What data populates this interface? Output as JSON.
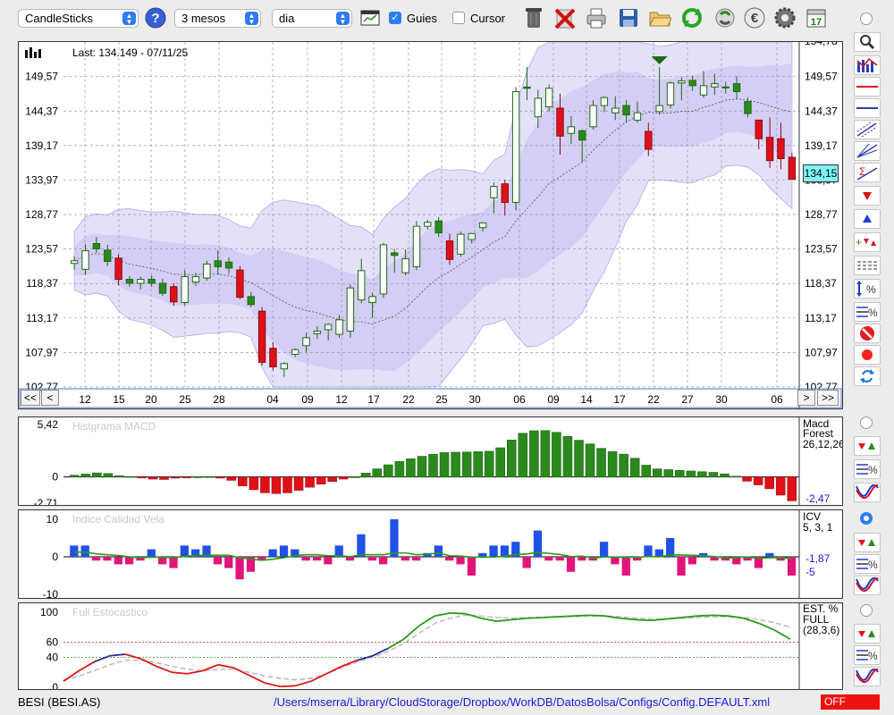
{
  "toolbar": {
    "chart_type": "CandleSticks",
    "period": "3 mesos",
    "interval": "dia",
    "guides_label": "Guies",
    "guides_checked": true,
    "cursor_label": "Cursor",
    "cursor_checked": false,
    "icons": [
      "help-icon",
      "calendar-chart-icon",
      "trash-icon",
      "delete-icon",
      "printer-icon",
      "save-icon",
      "open-folder-icon",
      "refresh-icon",
      "recycle-icon",
      "euro-icon",
      "gear-icon",
      "calendar-icon"
    ],
    "calendar_day": "17"
  },
  "main_chart": {
    "last_label": "Last: 134.149 - 07/11/25",
    "last_price_badge": "134,15",
    "y_ticks": [
      "149,57",
      "144,37",
      "139,17",
      "133,97",
      "128,77",
      "123,57",
      "118,37",
      "113,17",
      "107,97",
      "102,77"
    ],
    "y_top_partial": "154,78",
    "x_ticks": [
      "12",
      "15",
      "20",
      "25",
      "28",
      "04",
      "09",
      "12",
      "17",
      "22",
      "25",
      "30",
      "06",
      "09",
      "14",
      "17",
      "22",
      "27",
      "30",
      "06"
    ],
    "nav": {
      "first": "<<",
      "prev": "<",
      "next": ">",
      "last": ">>"
    }
  },
  "macd": {
    "title": "Histgrama MACD",
    "legend": [
      "Macd",
      "Forest",
      "26,12,26"
    ],
    "y_ticks": [
      "5,42",
      "0",
      "-2,71"
    ],
    "value": "-2,47"
  },
  "icv": {
    "title": "Indice Calidad Vela",
    "legend": [
      "ICV",
      "5, 3, 1"
    ],
    "y_ticks": [
      "10",
      "0",
      "-10"
    ],
    "values": [
      "-1,87",
      "-5"
    ]
  },
  "stoch": {
    "title": "Full Estocastico",
    "legend": [
      "EST. %",
      "FULL",
      "(28,3,6)"
    ],
    "y_ticks": [
      "100",
      "60",
      "40",
      "0"
    ]
  },
  "status": {
    "symbol": "BESI (BESI.AS)",
    "config_path": "/Users/mserra/Library/CloudStorage/Dropbox/WorkDB/DatosBolsa/Configs/Config.DEFAULT.xml",
    "off_label": "OFF"
  },
  "colors": {
    "up": "#2a8a1c",
    "down": "#e0101a",
    "band": "#d9d4f7",
    "accent": "#2d7cf5",
    "badge": "#7ff3f7"
  },
  "chart_data": [
    {
      "type": "candlestick",
      "title": "",
      "ylim": [
        102.77,
        154.78
      ],
      "x_tick_labels": [
        "12",
        "15",
        "20",
        "25",
        "28",
        "04",
        "09",
        "12",
        "17",
        "22",
        "25",
        "30",
        "06",
        "09",
        "14",
        "17",
        "22",
        "27",
        "30",
        "06"
      ],
      "last": 134.149,
      "ohlc": [
        [
          121.4,
          122.5,
          120.4,
          121.8
        ],
        [
          120.5,
          124.3,
          119.7,
          123.3
        ],
        [
          124.4,
          125.4,
          123.0,
          123.6
        ],
        [
          123.4,
          124.2,
          121.0,
          121.7
        ],
        [
          122.2,
          122.8,
          118.1,
          119.0
        ],
        [
          119.0,
          119.5,
          117.9,
          118.4
        ],
        [
          118.4,
          119.4,
          117.5,
          119.0
        ],
        [
          119.0,
          119.6,
          117.9,
          118.4
        ],
        [
          118.4,
          119.1,
          116.5,
          116.9
        ],
        [
          117.9,
          118.4,
          115.0,
          115.6
        ],
        [
          115.5,
          120.4,
          115.0,
          119.4
        ],
        [
          118.6,
          120.0,
          118.0,
          119.4
        ],
        [
          119.2,
          121.8,
          118.8,
          121.3
        ],
        [
          121.8,
          123.4,
          119.7,
          120.9
        ],
        [
          121.6,
          122.3,
          119.8,
          120.7
        ],
        [
          120.4,
          121.0,
          116.0,
          116.3
        ],
        [
          116.4,
          117.1,
          114.8,
          115.2
        ],
        [
          114.2,
          114.8,
          106.0,
          106.5
        ],
        [
          108.6,
          109.5,
          105.3,
          105.8
        ],
        [
          105.5,
          106.5,
          104.3,
          106.3
        ],
        [
          107.7,
          108.6,
          107.3,
          108.4
        ],
        [
          109.0,
          110.9,
          108.0,
          110.2
        ],
        [
          110.8,
          111.9,
          110.0,
          111.2
        ],
        [
          111.4,
          112.4,
          109.8,
          112.2
        ],
        [
          110.7,
          113.6,
          110.2,
          112.9
        ],
        [
          111.2,
          118.2,
          110.2,
          117.7
        ],
        [
          115.9,
          122.1,
          115.4,
          120.3
        ],
        [
          115.5,
          117.0,
          113.2,
          116.4
        ],
        [
          116.8,
          124.5,
          116.2,
          124.2
        ],
        [
          123.0,
          123.6,
          120.0,
          122.6
        ],
        [
          120.0,
          123.5,
          119.6,
          122.1
        ],
        [
          120.9,
          127.8,
          120.4,
          127.0
        ],
        [
          127.0,
          128.0,
          126.5,
          127.6
        ],
        [
          127.8,
          128.4,
          125.4,
          126.0
        ],
        [
          124.8,
          125.9,
          121.2,
          122.0
        ],
        [
          122.8,
          126.2,
          122.4,
          125.8
        ],
        [
          125.0,
          126.0,
          124.4,
          125.9
        ],
        [
          126.8,
          127.6,
          126.2,
          127.5
        ],
        [
          131.3,
          133.6,
          129.0,
          133.0
        ],
        [
          133.4,
          134.0,
          128.6,
          130.6
        ],
        [
          130.6,
          148.0,
          129.4,
          147.3
        ],
        [
          148.0,
          151.0,
          146.0,
          147.8
        ],
        [
          143.5,
          147.6,
          141.8,
          146.3
        ],
        [
          145.0,
          148.4,
          144.3,
          147.8
        ],
        [
          144.8,
          147.0,
          137.8,
          140.6
        ],
        [
          141.0,
          143.6,
          139.4,
          142.0
        ],
        [
          141.4,
          141.6,
          136.6,
          140.0
        ],
        [
          142.0,
          146.0,
          141.6,
          145.2
        ],
        [
          145.2,
          146.6,
          144.2,
          146.4
        ],
        [
          144.1,
          146.6,
          143.0,
          144.8
        ],
        [
          145.2,
          146.0,
          142.6,
          143.8
        ],
        [
          143.0,
          145.8,
          142.6,
          144.1
        ],
        [
          141.3,
          142.6,
          137.6,
          138.6
        ],
        [
          144.3,
          151.0,
          143.8,
          145.2
        ],
        [
          145.3,
          148.8,
          144.8,
          148.6
        ],
        [
          148.6,
          149.4,
          146.0,
          148.9
        ],
        [
          149.0,
          149.7,
          147.4,
          148.2
        ],
        [
          146.8,
          150.4,
          146.4,
          148.2
        ],
        [
          148.0,
          150.0,
          146.8,
          148.5
        ],
        [
          148.0,
          148.8,
          147.0,
          147.9
        ],
        [
          148.5,
          149.6,
          146.2,
          147.3
        ],
        [
          145.8,
          146.4,
          143.4,
          144.0
        ],
        [
          143.0,
          142.6,
          138.6,
          140.2
        ],
        [
          140.4,
          143.4,
          135.8,
          136.9
        ],
        [
          140.2,
          142.6,
          135.6,
          137.2
        ],
        [
          137.4,
          138.1,
          134.0,
          134.1
        ]
      ],
      "bands": {
        "upper_range": [
          128.5,
          153.6
        ],
        "lower_range": [
          104.4,
          120.0
        ]
      }
    },
    {
      "type": "bar",
      "title": "Histgrama MACD",
      "ylim": [
        -2.71,
        5.42
      ],
      "values": [
        0.18,
        0.3,
        0.42,
        0.36,
        0.12,
        0.05,
        -0.04,
        -0.22,
        -0.26,
        -0.12,
        -0.06,
        0.02,
        0.03,
        -0.12,
        -0.35,
        -0.92,
        -1.32,
        -1.64,
        -1.72,
        -1.64,
        -1.38,
        -1.06,
        -0.74,
        -0.48,
        -0.22,
        0.02,
        0.4,
        0.84,
        1.26,
        1.6,
        1.88,
        2.14,
        2.36,
        2.52,
        2.56,
        2.58,
        2.62,
        2.66,
        3.02,
        3.82,
        4.52,
        4.78,
        4.8,
        4.62,
        4.2,
        3.8,
        3.42,
        2.96,
        2.62,
        2.36,
        1.94,
        1.22,
        0.84,
        0.76,
        0.68,
        0.62,
        0.54,
        0.48,
        0.32,
        0.08,
        -0.44,
        -0.82,
        -1.22,
        -1.88,
        -2.47
      ]
    },
    {
      "type": "bar",
      "title": "Indice Calidad Vela",
      "ylim": [
        -10,
        10
      ],
      "values": [
        3,
        3,
        -1,
        -1,
        -2,
        -2,
        -1,
        2,
        -2,
        -3,
        3,
        2,
        3,
        -2,
        -3,
        -6,
        -4,
        -1,
        2,
        3,
        2,
        -1,
        -1,
        -2,
        3,
        -1,
        6,
        -1,
        -2,
        10,
        -1,
        -1,
        1,
        3,
        -1,
        -2,
        -5,
        1,
        3,
        3,
        4,
        -3,
        7,
        -1,
        -1,
        -4,
        -1,
        -1,
        4,
        -2,
        -5,
        -1,
        3,
        2,
        5,
        -5,
        -2,
        1,
        -1,
        -1,
        -2,
        -1,
        -3,
        1,
        -1,
        -5
      ],
      "signal_line": "green"
    },
    {
      "type": "line",
      "title": "Full Estocastico",
      "ylim": [
        0,
        100
      ],
      "reference_lines": [
        60,
        40
      ],
      "series": [
        {
          "values": [
            8,
            22,
            34,
            42,
            44,
            38,
            28,
            20,
            18,
            22,
            30,
            26,
            16,
            6,
            1,
            2,
            8,
            18,
            28,
            36,
            42,
            52,
            64,
            82,
            95,
            99,
            98,
            92,
            88,
            90,
            92,
            93,
            94,
            95,
            96,
            95,
            92,
            90,
            89,
            91,
            93,
            95,
            96,
            95,
            92,
            85,
            76,
            64
          ],
          "color": "red-blue-green"
        },
        {
          "values": [
            10,
            15,
            22,
            30,
            36,
            36,
            33,
            28,
            24,
            22,
            24,
            24,
            20,
            15,
            12,
            10,
            12,
            18,
            26,
            34,
            40,
            48,
            58,
            72,
            85,
            92,
            96,
            95,
            93,
            92,
            93,
            93,
            94,
            94,
            95,
            95,
            94,
            92,
            91,
            91,
            92,
            93,
            94,
            94,
            93,
            90,
            86,
            80
          ],
          "color": "#b8b8b8"
        }
      ]
    }
  ]
}
